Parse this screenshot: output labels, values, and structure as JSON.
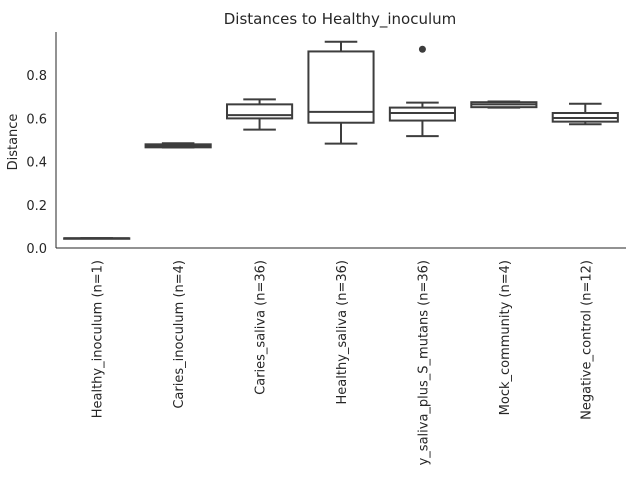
{
  "chart_data": {
    "type": "box",
    "title": "Distances to Healthy_inoculum",
    "xlabel": "",
    "ylabel": "Distance",
    "ylim": [
      0,
      1.0
    ],
    "yticks": [
      0.0,
      0.2,
      0.4,
      0.6,
      0.8
    ],
    "ytick_labels": [
      "0.0",
      "0.2",
      "0.4",
      "0.6",
      "0.8"
    ],
    "grid": false,
    "box_color": "#ffffff",
    "line_color": "#3d3d3d",
    "categories": [
      "Healthy_inoculum (n=1)",
      "Caries_inoculum (n=4)",
      "Caries_saliva (n=36)",
      "Healthy_saliva (n=36)",
      "y_saliva_plus_S_mutans (n=36)",
      "Mock_community (n=4)",
      "Negative_control (n=12)"
    ],
    "boxes": [
      {
        "whisker_low": 0.045,
        "q1": 0.045,
        "median": 0.045,
        "q3": 0.045,
        "whisker_high": 0.045,
        "outliers": []
      },
      {
        "whisker_low": 0.465,
        "q1": 0.466,
        "median": 0.472,
        "q3": 0.48,
        "whisker_high": 0.485,
        "outliers": []
      },
      {
        "whisker_low": 0.548,
        "q1": 0.6,
        "median": 0.615,
        "q3": 0.665,
        "whisker_high": 0.688,
        "outliers": []
      },
      {
        "whisker_low": 0.483,
        "q1": 0.58,
        "median": 0.63,
        "q3": 0.91,
        "whisker_high": 0.955,
        "outliers": []
      },
      {
        "whisker_low": 0.518,
        "q1": 0.59,
        "median": 0.625,
        "q3": 0.65,
        "whisker_high": 0.673,
        "outliers": [
          0.92
        ]
      },
      {
        "whisker_low": 0.65,
        "q1": 0.652,
        "median": 0.665,
        "q3": 0.675,
        "whisker_high": 0.678,
        "outliers": []
      },
      {
        "whisker_low": 0.573,
        "q1": 0.585,
        "median": 0.602,
        "q3": 0.625,
        "whisker_high": 0.668,
        "outliers": []
      }
    ]
  }
}
